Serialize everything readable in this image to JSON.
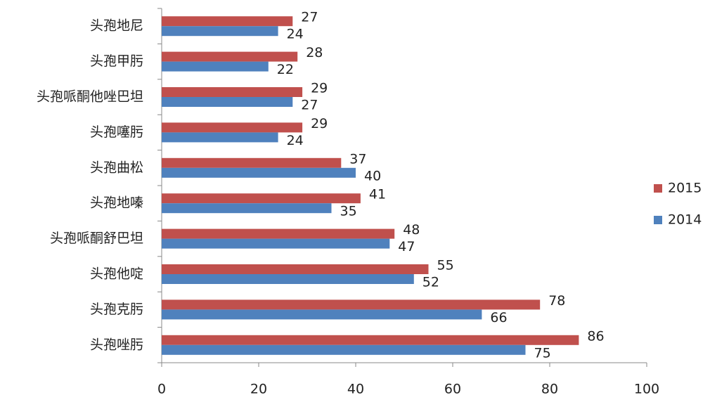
{
  "chart_data": {
    "type": "bar",
    "orientation": "horizontal",
    "categories": [
      "头孢地尼",
      "头孢甲肟",
      "头孢哌酮他唑巴坦",
      "头孢噻肟",
      "头孢曲松",
      "头孢地嗪",
      "头孢哌酮舒巴坦",
      "头孢他啶",
      "头孢克肟",
      "头孢唑肟"
    ],
    "series": [
      {
        "name": "2015",
        "color": "#c0504d",
        "values": [
          27,
          28,
          29,
          29,
          37,
          41,
          48,
          55,
          78,
          86
        ]
      },
      {
        "name": "2014",
        "color": "#4f81bd",
        "values": [
          24,
          22,
          27,
          24,
          40,
          35,
          47,
          52,
          66,
          75
        ]
      }
    ],
    "xlim": [
      0,
      100
    ],
    "xticks": [
      0,
      20,
      40,
      60,
      80,
      100
    ],
    "legend": "right"
  }
}
